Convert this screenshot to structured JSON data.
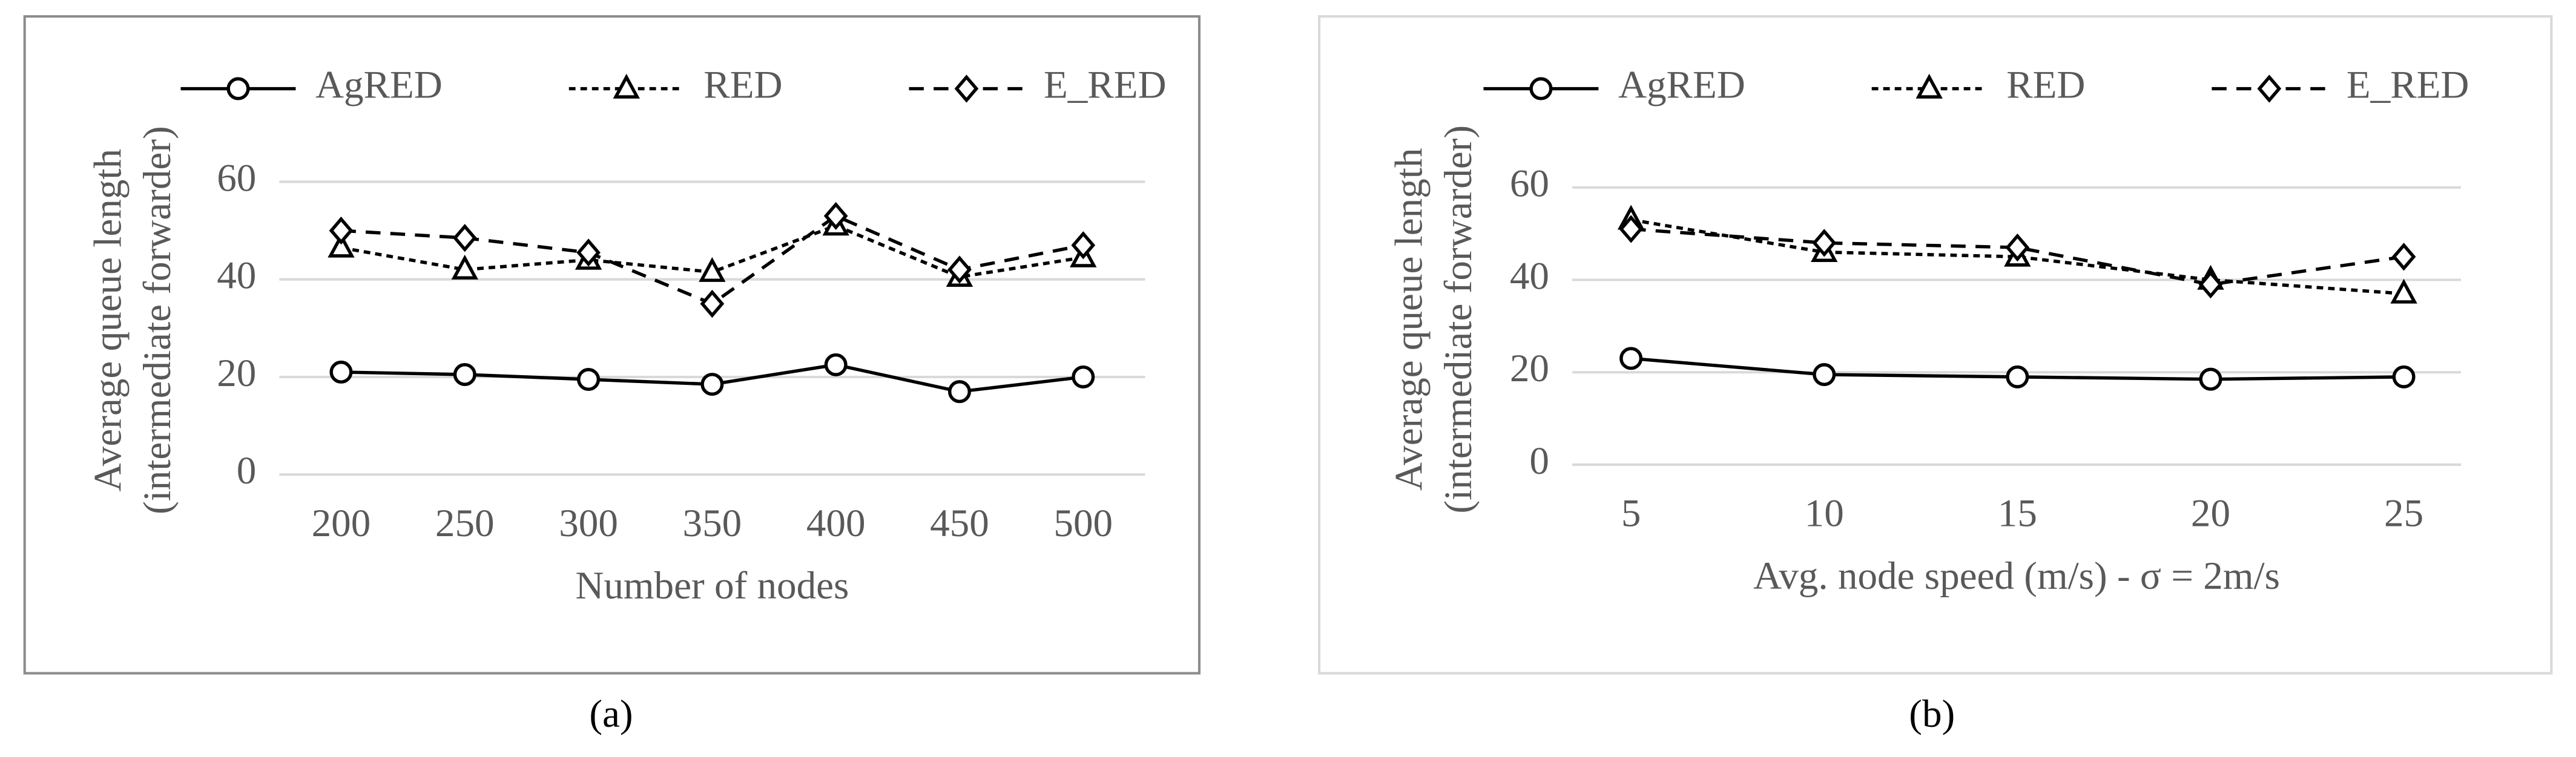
{
  "chart_data": [
    {
      "type": "line",
      "caption": "(a)",
      "xlabel": "Number of nodes",
      "ylabel": [
        "Average queue length",
        "(intermediate forwarder)"
      ],
      "categories": [
        "200",
        "250",
        "300",
        "350",
        "400",
        "450",
        "500"
      ],
      "series": [
        {
          "name": "AgRED",
          "color": "#000000",
          "marker": "circle",
          "dash": "solid",
          "values": [
            21,
            20.5,
            19.5,
            18.5,
            22.5,
            17,
            20
          ]
        },
        {
          "name": "RED",
          "color": "#000000",
          "marker": "triangle",
          "dash": "dotted",
          "values": [
            46.5,
            42,
            44,
            41.5,
            51,
            40.5,
            44.5
          ]
        },
        {
          "name": "E_RED",
          "color": "#000000",
          "marker": "diamond",
          "dash": "dashed",
          "values": [
            50,
            48.5,
            45.5,
            35,
            53,
            42,
            47
          ]
        }
      ],
      "ylim": [
        0,
        70
      ],
      "yticks": [
        0,
        20,
        40,
        60
      ],
      "grid": true,
      "legend": "top"
    },
    {
      "type": "line",
      "caption": "(b)",
      "xlabel": "Avg. node speed (m/s) - σ = 2m/s",
      "ylabel": [
        "Average queue length",
        "(intermediate forwarder)"
      ],
      "categories": [
        "5",
        "10",
        "15",
        "20",
        "25"
      ],
      "series": [
        {
          "name": "AgRED",
          "color": "#000000",
          "marker": "circle",
          "dash": "solid",
          "values": [
            23,
            19.5,
            19,
            18.5,
            19
          ]
        },
        {
          "name": "RED",
          "color": "#000000",
          "marker": "triangle",
          "dash": "dotted",
          "values": [
            53,
            46,
            45,
            40,
            37
          ]
        },
        {
          "name": "E_RED",
          "color": "#000000",
          "marker": "diamond",
          "dash": "dashed",
          "values": [
            51,
            48,
            47,
            39,
            45
          ]
        }
      ],
      "ylim": [
        0,
        70
      ],
      "yticks": [
        0,
        20,
        40,
        60
      ],
      "grid": true,
      "legend": "top"
    }
  ]
}
